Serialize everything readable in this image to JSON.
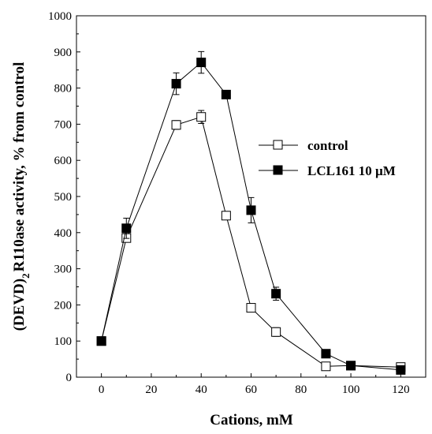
{
  "chart_data": {
    "type": "line",
    "xlabel": "Cations, mM",
    "ylabel": {
      "prefix": "(DEVD)",
      "subscript": "2",
      "suffix": "R110ase activity, % from control"
    },
    "xlim": [
      -10,
      130
    ],
    "ylim": [
      0,
      1000
    ],
    "xticks": [
      0,
      20,
      40,
      60,
      80,
      100,
      120
    ],
    "yticks": [
      0,
      100,
      200,
      300,
      400,
      500,
      600,
      700,
      800,
      900,
      1000
    ],
    "grid": false,
    "legend_position": "right",
    "series": [
      {
        "name": "control",
        "marker": "open-square",
        "color": "#000000",
        "x": [
          0,
          10,
          30,
          40,
          50,
          60,
          70,
          90,
          100,
          120
        ],
        "y": [
          100,
          385,
          698,
          720,
          447,
          192,
          125,
          30,
          32,
          28
        ],
        "err": [
          0,
          10,
          12,
          18,
          5,
          10,
          12,
          8,
          5,
          5
        ]
      },
      {
        "name": "LCL161 10 µM",
        "marker": "filled-square",
        "color": "#000000",
        "x": [
          0,
          10,
          30,
          40,
          50,
          60,
          70,
          90,
          100,
          120
        ],
        "y": [
          100,
          412,
          812,
          871,
          782,
          462,
          231,
          65,
          32,
          20
        ],
        "err": [
          0,
          28,
          30,
          30,
          10,
          35,
          18,
          5,
          5,
          5
        ]
      }
    ]
  }
}
